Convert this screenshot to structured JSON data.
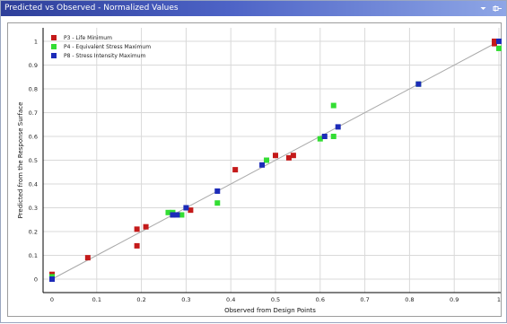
{
  "window": {
    "title": "Predicted vs Observed - Normalized Values"
  },
  "icons": {
    "dropdown": "chevron-down-icon",
    "pin": "pin-icon"
  },
  "chart_data": {
    "type": "scatter",
    "title": "",
    "xlabel": "Observed from Design Points",
    "ylabel": "Predicted from the Response Surface",
    "xlim": [
      0,
      1
    ],
    "ylim": [
      0,
      1
    ],
    "xticks": [
      "0",
      "0.1",
      "0.2",
      "0.3",
      "0.4",
      "0.5",
      "0.6",
      "0.7",
      "0.8",
      "0.9",
      "1"
    ],
    "yticks": [
      "0",
      "0.1",
      "0.2",
      "0.3",
      "0.4",
      "0.5",
      "0.6",
      "0.7",
      "0.8",
      "0.9",
      "1"
    ],
    "grid": true,
    "legend_position": "top-left",
    "reference_line": {
      "from": [
        0,
        0
      ],
      "to": [
        1,
        1
      ],
      "color": "#a9a9a9"
    },
    "series": [
      {
        "name": "P3 - Life Minimum",
        "color": "#c41a1a",
        "points": [
          [
            0.0,
            0.02
          ],
          [
            0.08,
            0.09
          ],
          [
            0.19,
            0.14
          ],
          [
            0.19,
            0.21
          ],
          [
            0.21,
            0.22
          ],
          [
            0.27,
            0.27
          ],
          [
            0.31,
            0.29
          ],
          [
            0.41,
            0.46
          ],
          [
            0.5,
            0.52
          ],
          [
            0.53,
            0.51
          ],
          [
            0.54,
            0.52
          ],
          [
            0.99,
            1.0
          ],
          [
            0.99,
            0.99
          ]
        ]
      },
      {
        "name": "P4 - Equivalent Stress Maximum",
        "color": "#33dd33",
        "points": [
          [
            0.0,
            0.01
          ],
          [
            0.26,
            0.28
          ],
          [
            0.27,
            0.28
          ],
          [
            0.29,
            0.27
          ],
          [
            0.37,
            0.32
          ],
          [
            0.48,
            0.5
          ],
          [
            0.6,
            0.59
          ],
          [
            0.63,
            0.6
          ],
          [
            0.63,
            0.73
          ],
          [
            0.82,
            0.82
          ],
          [
            1.0,
            0.97
          ]
        ]
      },
      {
        "name": "P8 - Stress Intensity Maximum",
        "color": "#1c2bb8",
        "points": [
          [
            0.0,
            0.0
          ],
          [
            0.27,
            0.27
          ],
          [
            0.28,
            0.27
          ],
          [
            0.3,
            0.3
          ],
          [
            0.37,
            0.37
          ],
          [
            0.47,
            0.48
          ],
          [
            0.61,
            0.6
          ],
          [
            0.64,
            0.64
          ],
          [
            0.82,
            0.82
          ],
          [
            1.0,
            1.0
          ]
        ]
      }
    ]
  }
}
